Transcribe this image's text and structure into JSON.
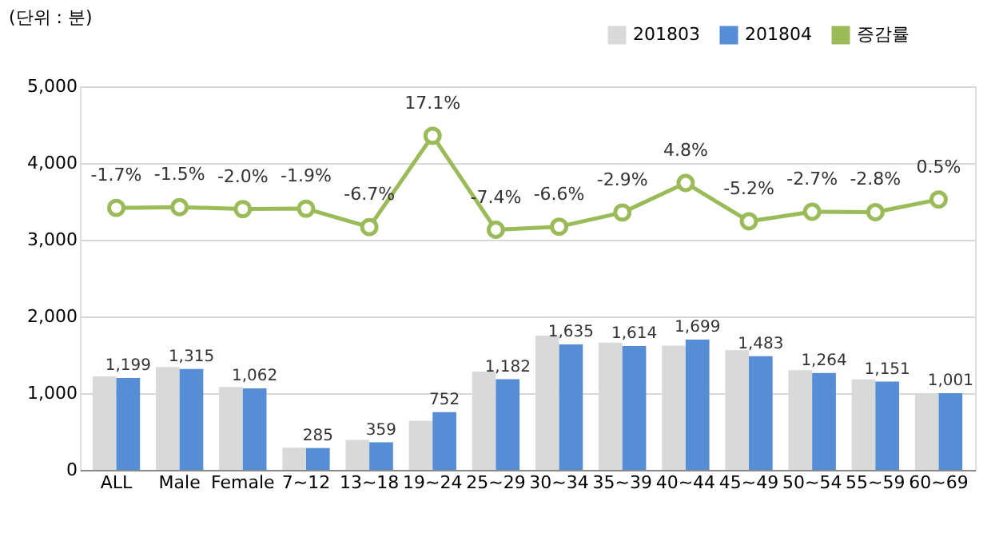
{
  "chart_data": {
    "type": "bar",
    "ylabel": "(단위 : 분)",
    "categories": [
      "ALL",
      "Male",
      "Female",
      "7~12",
      "13~18",
      "19~24",
      "25~29",
      "30~34",
      "35~39",
      "40~44",
      "45~49",
      "50~54",
      "55~59",
      "60~69"
    ],
    "series": [
      {
        "name": "201803",
        "color": "#d9d9d9",
        "values": [
          1220,
          1340,
          1080,
          290,
          390,
          640,
          1280,
          1750,
          1660,
          1620,
          1560,
          1300,
          1180,
          1000
        ]
      },
      {
        "name": "201804",
        "color": "#558ed5",
        "values": [
          1199,
          1315,
          1062,
          285,
          359,
          752,
          1182,
          1635,
          1614,
          1699,
          1483,
          1264,
          1151,
          1001
        ],
        "value_labels": [
          "1,199",
          "1,315",
          "1,062",
          "285",
          "359",
          "752",
          "1,182",
          "1,635",
          "1,614",
          "1,699",
          "1,483",
          "1,264",
          "1,151",
          "1,001"
        ]
      },
      {
        "name": "증감률",
        "type": "line",
        "axis": "y2",
        "color": "#9bbb59",
        "marker": "circle",
        "values": [
          -1.7,
          -1.5,
          -2.0,
          -1.9,
          -6.7,
          17.1,
          -7.4,
          -6.6,
          -2.9,
          4.8,
          -5.2,
          -2.7,
          -2.8,
          0.5
        ],
        "value_labels": [
          "-1.7%",
          "-1.5%",
          "-2.0%",
          "-1.9%",
          "-6.7%",
          "17.1%",
          "-7.4%",
          "-6.6%",
          "-2.9%",
          "4.8%",
          "-5.2%",
          "-2.7%",
          "-2.8%",
          "0.5%"
        ]
      }
    ],
    "ylim": [
      0,
      5000
    ],
    "yticks": [
      0,
      {
        "value": 1000,
        "label": "1,000"
      },
      {
        "value": 2000,
        "label": "2,000"
      },
      {
        "value": 3000,
        "label": "3,000"
      },
      {
        "value": 4000,
        "label": "4,000"
      },
      {
        "value": 5000,
        "label": "5,000"
      }
    ],
    "y2lim": [
      -70,
      30
    ],
    "tick_labels": "x,y",
    "grid": "y",
    "legend": "top right"
  }
}
